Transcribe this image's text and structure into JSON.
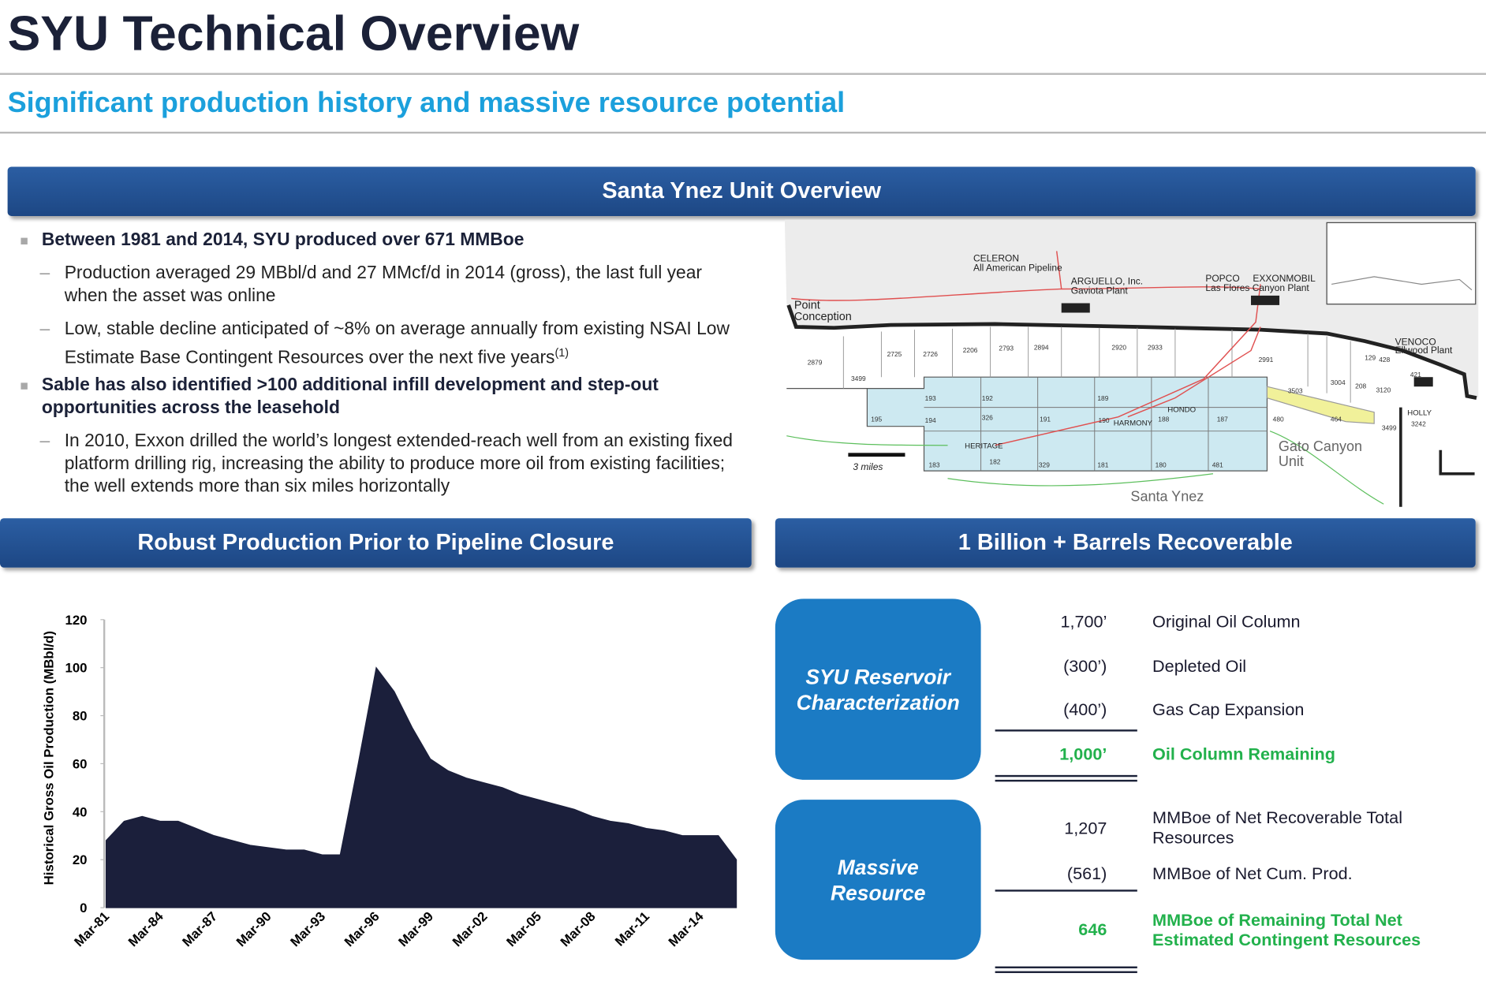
{
  "header": {
    "title": "SYU Technical Overview",
    "subtitle": "Significant production history and massive resource potential"
  },
  "overview": {
    "heading": "Santa Ynez Unit Overview",
    "bullets": [
      {
        "text": "Between 1981 and 2014, SYU produced over 671 MMBoe",
        "sub": [
          {
            "text": "Production averaged 29 MBbl/d and 27 MMcf/d in 2014 (gross), the last full year when the asset was online"
          },
          {
            "text": "Low, stable decline anticipated of ~8% on average annually from existing NSAI Low Estimate Base Contingent Resources over the next five years",
            "note": "(1)"
          }
        ]
      },
      {
        "text": "Sable has also identified >100 additional infill development and step-out opportunities across the leasehold",
        "sub": [
          {
            "text": "In 2010, Exxon drilled the world’s longest extended-reach well from an existing fixed platform drilling rig, increasing the ability to produce more oil from existing facilities; the well extends more than six miles horizontally"
          }
        ]
      }
    ]
  },
  "map": {
    "labels": [
      "CELERON",
      "All American Pipeline",
      "ARGUELLO, Inc.",
      "Gaviota Plant",
      "POPCO",
      "EXXONMOBIL",
      "Las Flores Canyon Plant",
      "Point",
      "Conception",
      "VENOCO",
      "Ellwood Plant",
      "HONDO",
      "HARMONY",
      "HERITAGE",
      "HOLLY",
      "3 miles",
      "Gato Canyon",
      "Unit",
      "Santa Ynez"
    ],
    "blocks": [
      "2879",
      "3499",
      "2725",
      "2726",
      "2206",
      "2793",
      "2894",
      "2920",
      "2933",
      "2991",
      "3503",
      "3004",
      "208",
      "3120",
      "129",
      "428",
      "421",
      "3499",
      "3242",
      "195",
      "193",
      "192",
      "189",
      "194",
      "326",
      "191",
      "190",
      "188",
      "187",
      "183",
      "182",
      "329",
      "181",
      "180",
      "481",
      "480",
      "464"
    ]
  },
  "production": {
    "heading": "Robust Production Prior to Pipeline Closure",
    "chart_data": {
      "type": "area",
      "y_label": "Historical Gross Oil Production (MBbl/d)",
      "color": "#1b1f3b",
      "categories": [
        "Mar-81",
        null,
        null,
        "Mar-84",
        null,
        null,
        "Mar-87",
        null,
        null,
        "Mar-90",
        null,
        null,
        "Mar-93",
        null,
        null,
        "Mar-96",
        null,
        null,
        "Mar-99",
        null,
        null,
        "Mar-02",
        null,
        null,
        "Mar-05",
        null,
        null,
        "Mar-08",
        null,
        null,
        "Mar-11",
        null,
        null,
        "Mar-14",
        null,
        null
      ],
      "values": [
        28,
        36,
        38,
        36,
        36,
        33,
        30,
        28,
        26,
        25,
        24,
        24,
        22,
        22,
        60,
        100,
        90,
        75,
        62,
        57,
        54,
        52,
        50,
        47,
        45,
        43,
        41,
        38,
        36,
        35,
        33,
        32,
        30,
        30,
        30,
        20
      ],
      "ylim": [
        0,
        120
      ],
      "yticks": [
        0,
        20,
        40,
        60,
        80,
        100,
        120
      ]
    }
  },
  "recoverable": {
    "heading": "1 Billion + Barrels Recoverable",
    "groups": [
      {
        "title": "SYU Reservoir Characterization",
        "rows": [
          {
            "value": "1,700’",
            "label": "Original Oil Column",
            "highlight": false
          },
          {
            "value": "(300’)",
            "label": "Depleted Oil",
            "highlight": false
          },
          {
            "value": "(400’)",
            "label": "Gas Cap Expansion",
            "highlight": false
          },
          {
            "value": "1,000’",
            "label": "Oil Column Remaining",
            "highlight": true
          }
        ]
      },
      {
        "title": "Massive Resource",
        "rows": [
          {
            "value": "1,207",
            "label": "MMBoe of Net Recoverable Total Resources",
            "highlight": false
          },
          {
            "value": "(561)",
            "label": "MMBoe of Net Cum. Prod.",
            "highlight": false
          },
          {
            "value": "646",
            "label": "MMBoe of Remaining Total Net Estimated Contingent Resources",
            "highlight": true
          }
        ]
      }
    ]
  }
}
